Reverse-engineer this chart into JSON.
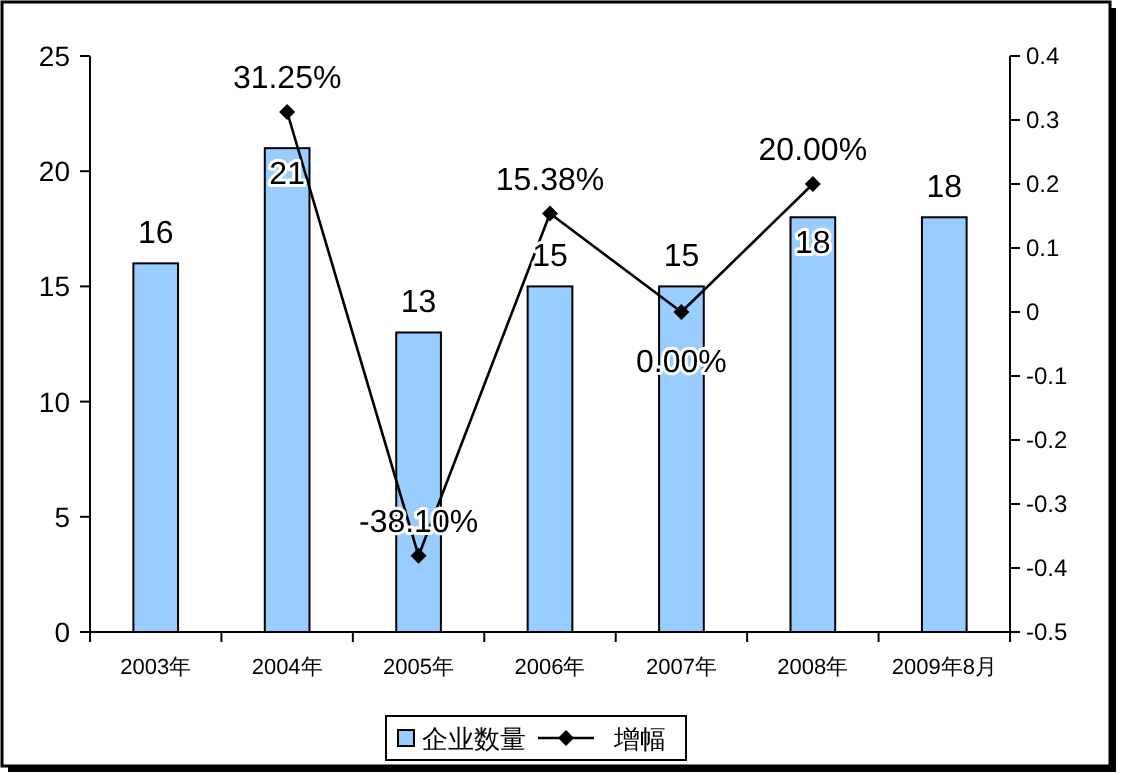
{
  "chart_data": {
    "type": "bar",
    "categories": [
      "2003年",
      "2004年",
      "2005年",
      "2006年",
      "2007年",
      "2008年",
      "2009年8月"
    ],
    "series": [
      {
        "name": "企业数量",
        "color": "#99ccff",
        "values": [
          16,
          21,
          13,
          15,
          15,
          18,
          18
        ],
        "value_labels": [
          "16",
          "21",
          "13",
          "15",
          "15",
          "18",
          "18"
        ]
      },
      {
        "name": "增幅",
        "type": "line",
        "axis": "y2",
        "color": "#000000",
        "marker": "diamond",
        "values": [
          null,
          0.3125,
          -0.381,
          0.1538,
          0,
          0.2,
          null
        ],
        "value_labels": [
          null,
          "31.25%",
          "-38.10%",
          "15.38%",
          "0.00%",
          "20.00%",
          null
        ]
      }
    ],
    "ylim": [
      0,
      25
    ],
    "yticks": [
      0,
      5,
      10,
      15,
      20,
      25
    ],
    "y2lim": [
      -0.5,
      0.4
    ],
    "y2ticks": [
      -0.5,
      -0.4,
      -0.3,
      -0.2,
      -0.1,
      0,
      0.1,
      0.2,
      0.3,
      0.4
    ],
    "legend": "bottom",
    "grid": false
  }
}
